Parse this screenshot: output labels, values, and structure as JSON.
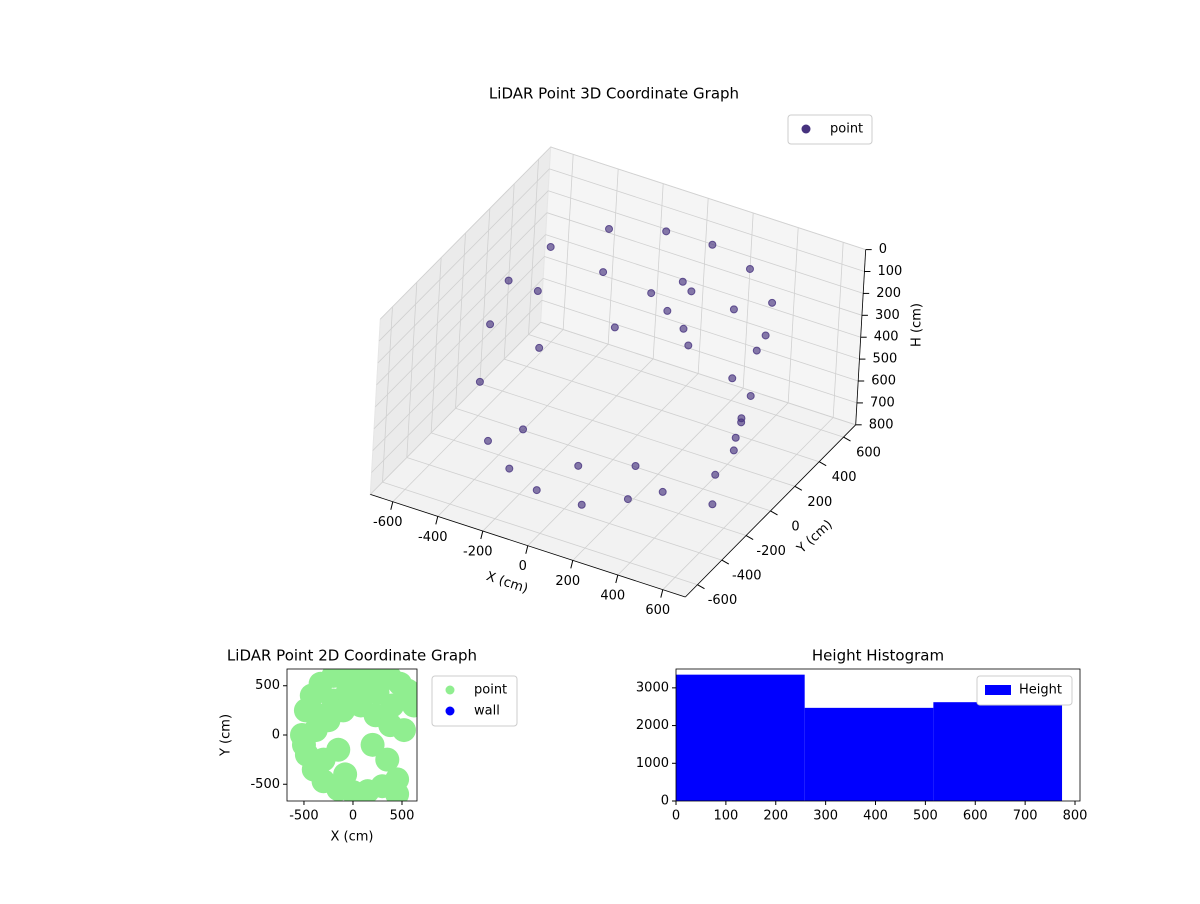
{
  "chart_data": [
    {
      "type": "scatter3d",
      "title": "LiDAR Point 3D Coordinate Graph",
      "xlabel": "X (cm)",
      "ylabel": "Y (cm)",
      "zlabel": "H (cm)",
      "xlim": [
        -700,
        700
      ],
      "ylim": [
        -700,
        700
      ],
      "zlim": [
        0,
        800
      ],
      "zinverted": true,
      "xticks": [
        -600,
        -400,
        -200,
        0,
        200,
        400,
        600
      ],
      "yticks": [
        -600,
        -400,
        -200,
        0,
        200,
        400,
        600
      ],
      "zticks": [
        0,
        100,
        200,
        300,
        400,
        500,
        600,
        700,
        800
      ],
      "legend": "upper right",
      "grid": true,
      "series": [
        {
          "name": "point",
          "color": "#46327e",
          "x": [
            -500,
            -450,
            -300,
            -100,
            100,
            300,
            480,
            560,
            -520,
            -470,
            -300,
            0,
            250,
            450,
            560,
            -500,
            -400,
            -200,
            100,
            350,
            500,
            580,
            100,
            200,
            0,
            150,
            -400,
            -250,
            -100,
            100,
            250,
            350,
            -300,
            0,
            200,
            650,
            650,
            600,
            620
          ],
          "y": [
            0,
            250,
            450,
            550,
            560,
            500,
            350,
            150,
            -100,
            200,
            420,
            520,
            480,
            300,
            50,
            -200,
            100,
            350,
            400,
            300,
            100,
            -100,
            200,
            150,
            250,
            300,
            -300,
            -400,
            -450,
            -450,
            -350,
            -250,
            -200,
            -300,
            -200,
            -200,
            -250,
            -300,
            -350
          ],
          "z": [
            150,
            120,
            100,
            100,
            100,
            110,
            120,
            130,
            300,
            300,
            280,
            280,
            300,
            320,
            350,
            500,
            480,
            460,
            470,
            480,
            500,
            450,
            200,
            220,
            180,
            150,
            680,
            700,
            720,
            720,
            700,
            690,
            650,
            660,
            650,
            300,
            400,
            500,
            600
          ]
        }
      ]
    },
    {
      "type": "scatter",
      "title": "LiDAR Point 2D Coordinate Graph",
      "xlabel": "X (cm)",
      "ylabel": "Y (cm)",
      "xlim": [
        -673,
        653
      ],
      "ylim": [
        -670,
        670
      ],
      "xticks": [
        -500,
        0,
        500
      ],
      "yticks": [
        -500,
        0,
        500
      ],
      "legend": "outside right",
      "series": [
        {
          "name": "point",
          "color": "#90ee90",
          "x": [
            -520,
            -480,
            -420,
            -330,
            -200,
            -50,
            100,
            250,
            380,
            480,
            560,
            620,
            -470,
            -400,
            -300,
            -150,
            0,
            150,
            300,
            450,
            -350,
            -200,
            -50,
            100,
            250,
            400,
            -500,
            -380,
            -250,
            -100,
            80,
            230,
            380,
            520,
            -300,
            -150,
            200,
            350,
            -80,
            450
          ],
          "y": [
            0,
            250,
            400,
            520,
            600,
            640,
            640,
            620,
            580,
            520,
            450,
            300,
            -200,
            -350,
            -470,
            -550,
            -580,
            -570,
            -520,
            -450,
            200,
            350,
            450,
            480,
            430,
            300,
            -100,
            50,
            150,
            250,
            300,
            200,
            100,
            50,
            -250,
            -150,
            -100,
            -250,
            -400,
            -600
          ],
          "sizes": []
        },
        {
          "name": "wall",
          "color": "#0000ff",
          "x": [],
          "y": []
        }
      ]
    },
    {
      "type": "histogram",
      "title": "Height Histogram",
      "bins": [
        0,
        258,
        516,
        774
      ],
      "values": [
        3350,
        2470,
        2620
      ],
      "xlim": [
        0,
        810
      ],
      "ylim": [
        0,
        3500
      ],
      "xticks": [
        0,
        100,
        200,
        300,
        400,
        500,
        600,
        700,
        800
      ],
      "yticks": [
        0,
        1000,
        2000,
        3000
      ],
      "series_name": "Height",
      "color": "#0000ff",
      "legend": "upper right"
    }
  ]
}
